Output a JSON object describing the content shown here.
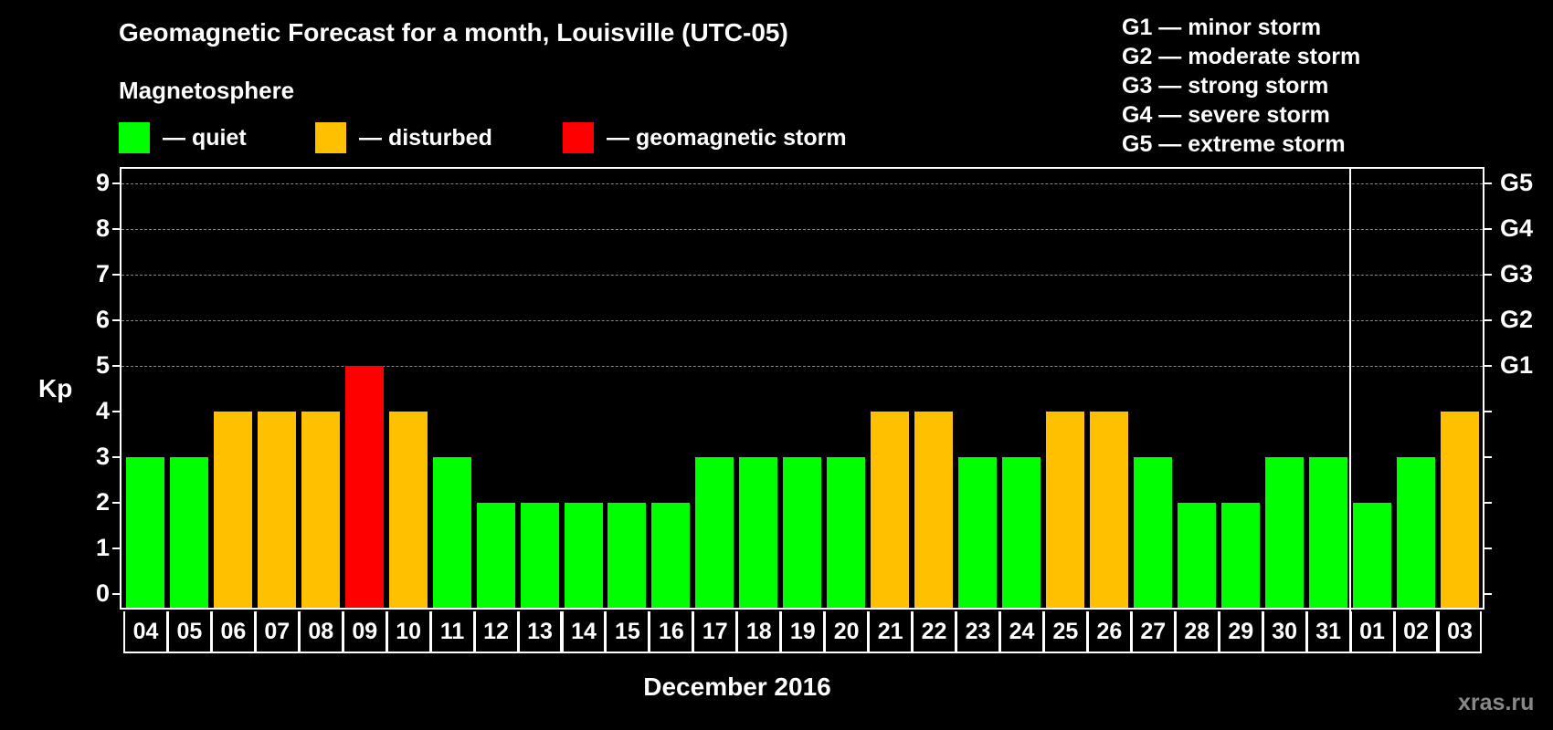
{
  "title": "Geomagnetic Forecast for a month, Louisville (UTC-05)",
  "subtitle": "Magnetosphere",
  "legend": [
    {
      "label": "— quiet",
      "color": "#00ff00"
    },
    {
      "label": "— disturbed",
      "color": "#ffc000"
    },
    {
      "label": "— geomagnetic storm",
      "color": "#ff0000"
    }
  ],
  "g_legend": [
    "G1 — minor storm",
    "G2 — moderate storm",
    "G3 — strong storm",
    "G4 — severe storm",
    "G5 — extreme storm"
  ],
  "watermark": "xras.ru",
  "chart_data": {
    "type": "bar",
    "title": "Geomagnetic Forecast for a month, Louisville (UTC-05)",
    "xlabel": "December 2016",
    "ylabel": "Kp",
    "ylim": [
      0,
      9
    ],
    "yticks": [
      "0",
      "1",
      "2",
      "3",
      "4",
      "5",
      "6",
      "7",
      "8",
      "9"
    ],
    "right_axis_labels": {
      "5": "G1",
      "6": "G2",
      "7": "G3",
      "8": "G4",
      "9": "G5"
    },
    "grid": "dashed horizontal at 5-9",
    "categories": [
      "04",
      "05",
      "06",
      "07",
      "08",
      "09",
      "10",
      "11",
      "12",
      "13",
      "14",
      "15",
      "16",
      "17",
      "18",
      "19",
      "20",
      "21",
      "22",
      "23",
      "24",
      "25",
      "26",
      "27",
      "28",
      "29",
      "30",
      "31",
      "01",
      "02",
      "03"
    ],
    "values": [
      3,
      3,
      4,
      4,
      4,
      5,
      4,
      3,
      2,
      2,
      2,
      2,
      2,
      3,
      3,
      3,
      3,
      4,
      4,
      3,
      3,
      4,
      4,
      3,
      2,
      2,
      3,
      3,
      2,
      3,
      4
    ],
    "status": [
      "quiet",
      "quiet",
      "disturbed",
      "disturbed",
      "disturbed",
      "storm",
      "disturbed",
      "quiet",
      "quiet",
      "quiet",
      "quiet",
      "quiet",
      "quiet",
      "quiet",
      "quiet",
      "quiet",
      "quiet",
      "disturbed",
      "disturbed",
      "quiet",
      "quiet",
      "disturbed",
      "disturbed",
      "quiet",
      "quiet",
      "quiet",
      "quiet",
      "quiet",
      "quiet",
      "quiet",
      "disturbed"
    ],
    "colors": {
      "quiet": "#00ff00",
      "disturbed": "#ffc000",
      "storm": "#ff0000"
    },
    "month_separator_after": "31"
  }
}
